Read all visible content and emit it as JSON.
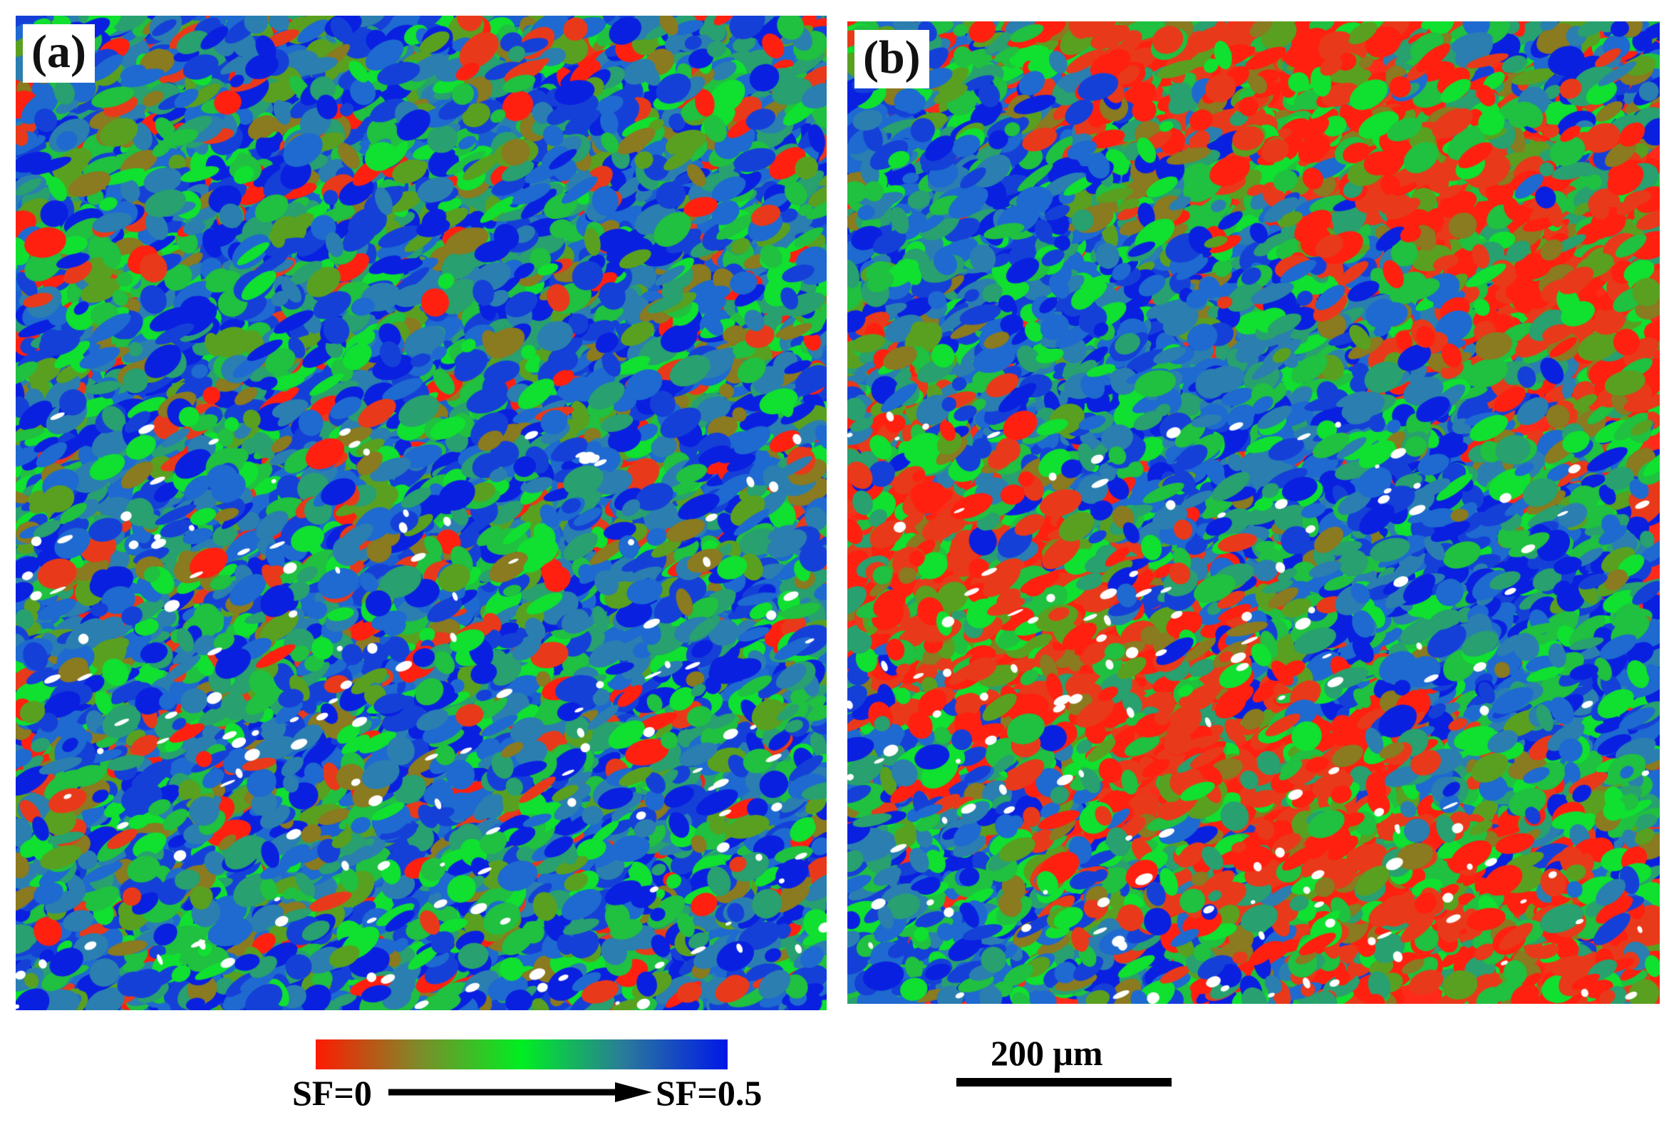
{
  "panels": [
    {
      "label": "(a)",
      "dominant_color": "#1a5fd0"
    },
    {
      "label": "(b)",
      "dominant_color": "#ff2a1a"
    }
  ],
  "colorbar": {
    "min_label": "SF=0",
    "max_label": "SF=0.5",
    "colors": [
      "#ff1a00",
      "#7f8a2a",
      "#00ee22",
      "#2a7a9a",
      "#0018e8"
    ]
  },
  "scale_bar": {
    "label": "200 μm"
  }
}
